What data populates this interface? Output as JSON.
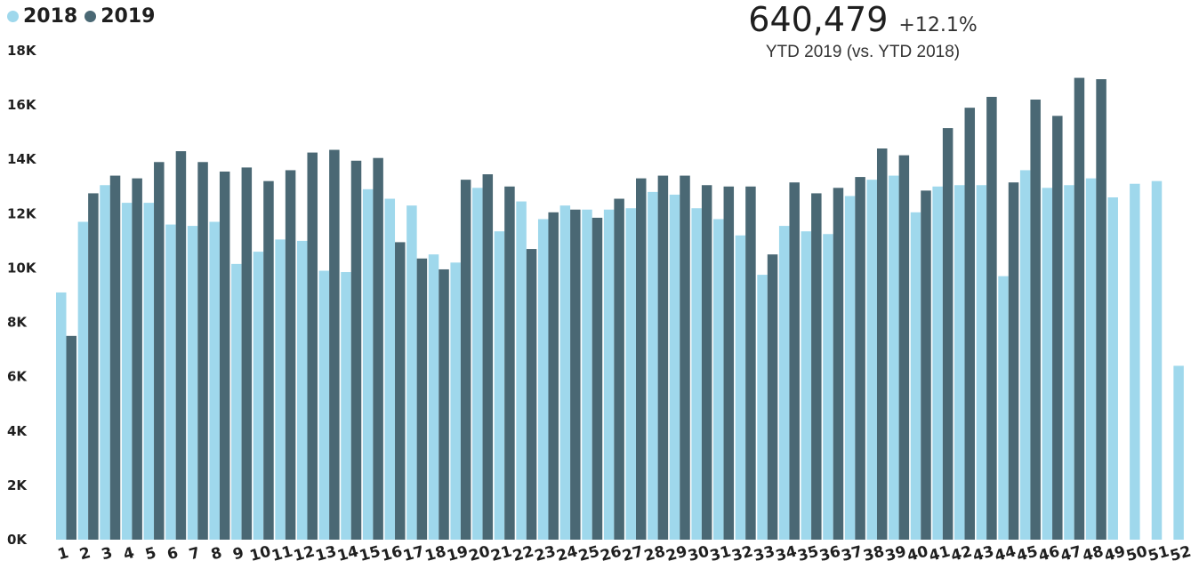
{
  "legend": {
    "items": [
      {
        "label": "2018",
        "color": "#9fd8ec"
      },
      {
        "label": "2019",
        "color": "#4a6874"
      }
    ]
  },
  "kpi": {
    "value": "640,479",
    "change": "+12.1%",
    "subtitle": "YTD 2019 (vs. YTD 2018)"
  },
  "chart_data": {
    "type": "bar",
    "title": "",
    "xlabel": "",
    "ylabel": "",
    "ylim": [
      0,
      18000
    ],
    "yticks": [
      0,
      2000,
      4000,
      6000,
      8000,
      10000,
      12000,
      14000,
      16000,
      18000
    ],
    "ytick_labels": [
      "0K",
      "2K",
      "4K",
      "6K",
      "8K",
      "10K",
      "12K",
      "14K",
      "16K",
      "18K"
    ],
    "grid": false,
    "legend_position": "top-left",
    "categories": [
      "1",
      "2",
      "3",
      "4",
      "5",
      "6",
      "7",
      "8",
      "9",
      "10",
      "11",
      "12",
      "13",
      "14",
      "15",
      "16",
      "17",
      "18",
      "19",
      "20",
      "21",
      "22",
      "23",
      "24",
      "25",
      "26",
      "27",
      "28",
      "29",
      "30",
      "31",
      "32",
      "33",
      "34",
      "35",
      "36",
      "37",
      "38",
      "39",
      "40",
      "41",
      "42",
      "43",
      "44",
      "45",
      "46",
      "47",
      "48",
      "49",
      "50",
      "51",
      "52"
    ],
    "series": [
      {
        "name": "2018",
        "color": "#9fd8ec",
        "values": [
          9100,
          11700,
          13050,
          12400,
          12400,
          11600,
          11550,
          11700,
          10150,
          10600,
          11050,
          11000,
          9900,
          9850,
          12900,
          12550,
          12300,
          10500,
          10200,
          12950,
          11350,
          12450,
          11800,
          12300,
          12150,
          12150,
          12200,
          12800,
          12700,
          12200,
          11800,
          11200,
          9750,
          11550,
          11350,
          11250,
          12650,
          13250,
          13400,
          12050,
          13000,
          13050,
          13050,
          9700,
          13600,
          12950,
          13050,
          13300,
          12600,
          13100,
          13200,
          6400
        ]
      },
      {
        "name": "2019",
        "color": "#4a6874",
        "values": [
          7500,
          12750,
          13400,
          13300,
          13900,
          14300,
          13900,
          13550,
          13700,
          13200,
          13600,
          14250,
          14350,
          13950,
          14050,
          10950,
          10350,
          9950,
          13250,
          13450,
          13000,
          10700,
          12050,
          12150,
          11850,
          12550,
          13300,
          13400,
          13400,
          13050,
          13000,
          13000,
          10500,
          13150,
          12750,
          12950,
          13350,
          14400,
          14150,
          12850,
          15150,
          15900,
          16300,
          13150,
          16200,
          15600,
          17000,
          16950,
          null,
          null,
          null,
          null
        ]
      }
    ]
  }
}
